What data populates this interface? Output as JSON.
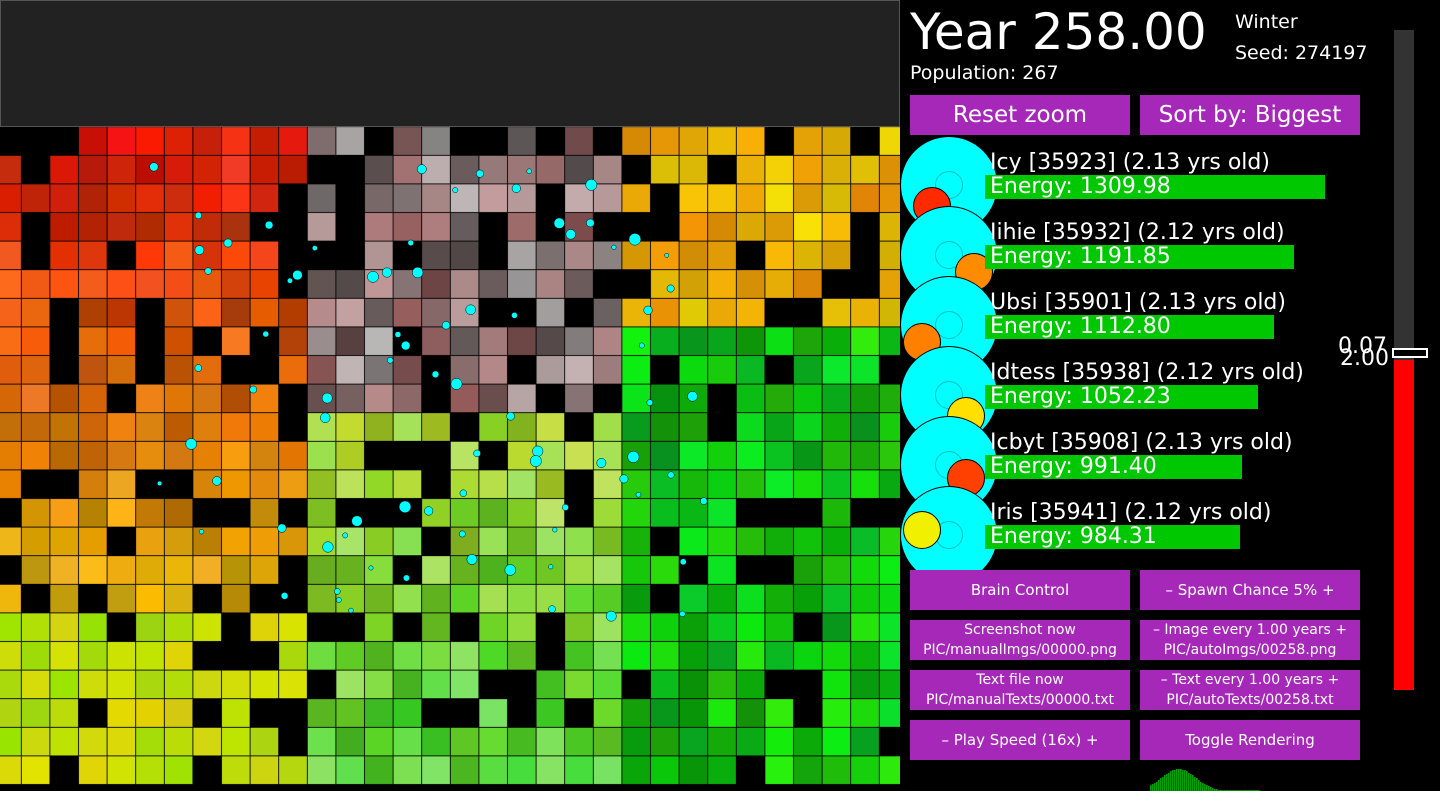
{
  "header": {
    "year": "Year 258.00",
    "population": "Population: 267",
    "season": "Winter",
    "seed": "Seed: 274197"
  },
  "buttons": {
    "reset_zoom": "Reset zoom",
    "sort": "Sort by: Biggest",
    "brain_control": "Brain Control",
    "spawn_chance": "–   Spawn Chance 5%   +",
    "screenshot_line1": "Screenshot now",
    "screenshot_line2": "PIC/manualImgs/00000.png",
    "image_every_line1": "–   Image every 1.00 years   +",
    "image_every_line2": "PIC/autoImgs/00258.png",
    "textfile_line1": "Text file now",
    "textfile_line2": "PIC/manualTexts/00000.txt",
    "text_every_line1": "–   Text every 1.00 years   +",
    "text_every_line2": "PIC/autoTexts/00258.txt",
    "play_speed": "–   Play Speed (16x)   +",
    "toggle_render": "Toggle Rendering"
  },
  "creatures": [
    {
      "name": "Icy [35923] (2.13 yrs old)",
      "energy": "Energy: 1309.98",
      "energy_value": 1309.98,
      "mouth_color": "#ff2a00"
    },
    {
      "name": "Iihie [35932] (2.12 yrs old)",
      "energy": "Energy: 1191.85",
      "energy_value": 1191.85,
      "mouth_color": "#ff8c00"
    },
    {
      "name": "Ubsi [35901] (2.13 yrs old)",
      "energy": "Energy: 1112.80",
      "energy_value": 1112.8,
      "mouth_color": "#ff8000"
    },
    {
      "name": "Idtess [35938] (2.12 yrs old)",
      "energy": "Energy: 1052.23",
      "energy_value": 1052.23,
      "mouth_color": "#ffe000"
    },
    {
      "name": "Icbyt [35908] (2.13 yrs old)",
      "energy": "Energy: 991.40",
      "energy_value": 991.4,
      "mouth_color": "#ff4000"
    },
    {
      "name": "Iris [35941] (2.12 yrs old)",
      "energy": "Energy: 984.31",
      "energy_value": 984.31,
      "mouth_color": "#f0f000"
    }
  ],
  "slider": {
    "label_top": "0.07",
    "label_bottom": "2.00",
    "fill_fraction": 0.5
  },
  "colors": {
    "button": "#a628b8",
    "energy_bar": "#00c800",
    "creature_body": "#00ffff",
    "slider_fill": "#ff0000"
  }
}
